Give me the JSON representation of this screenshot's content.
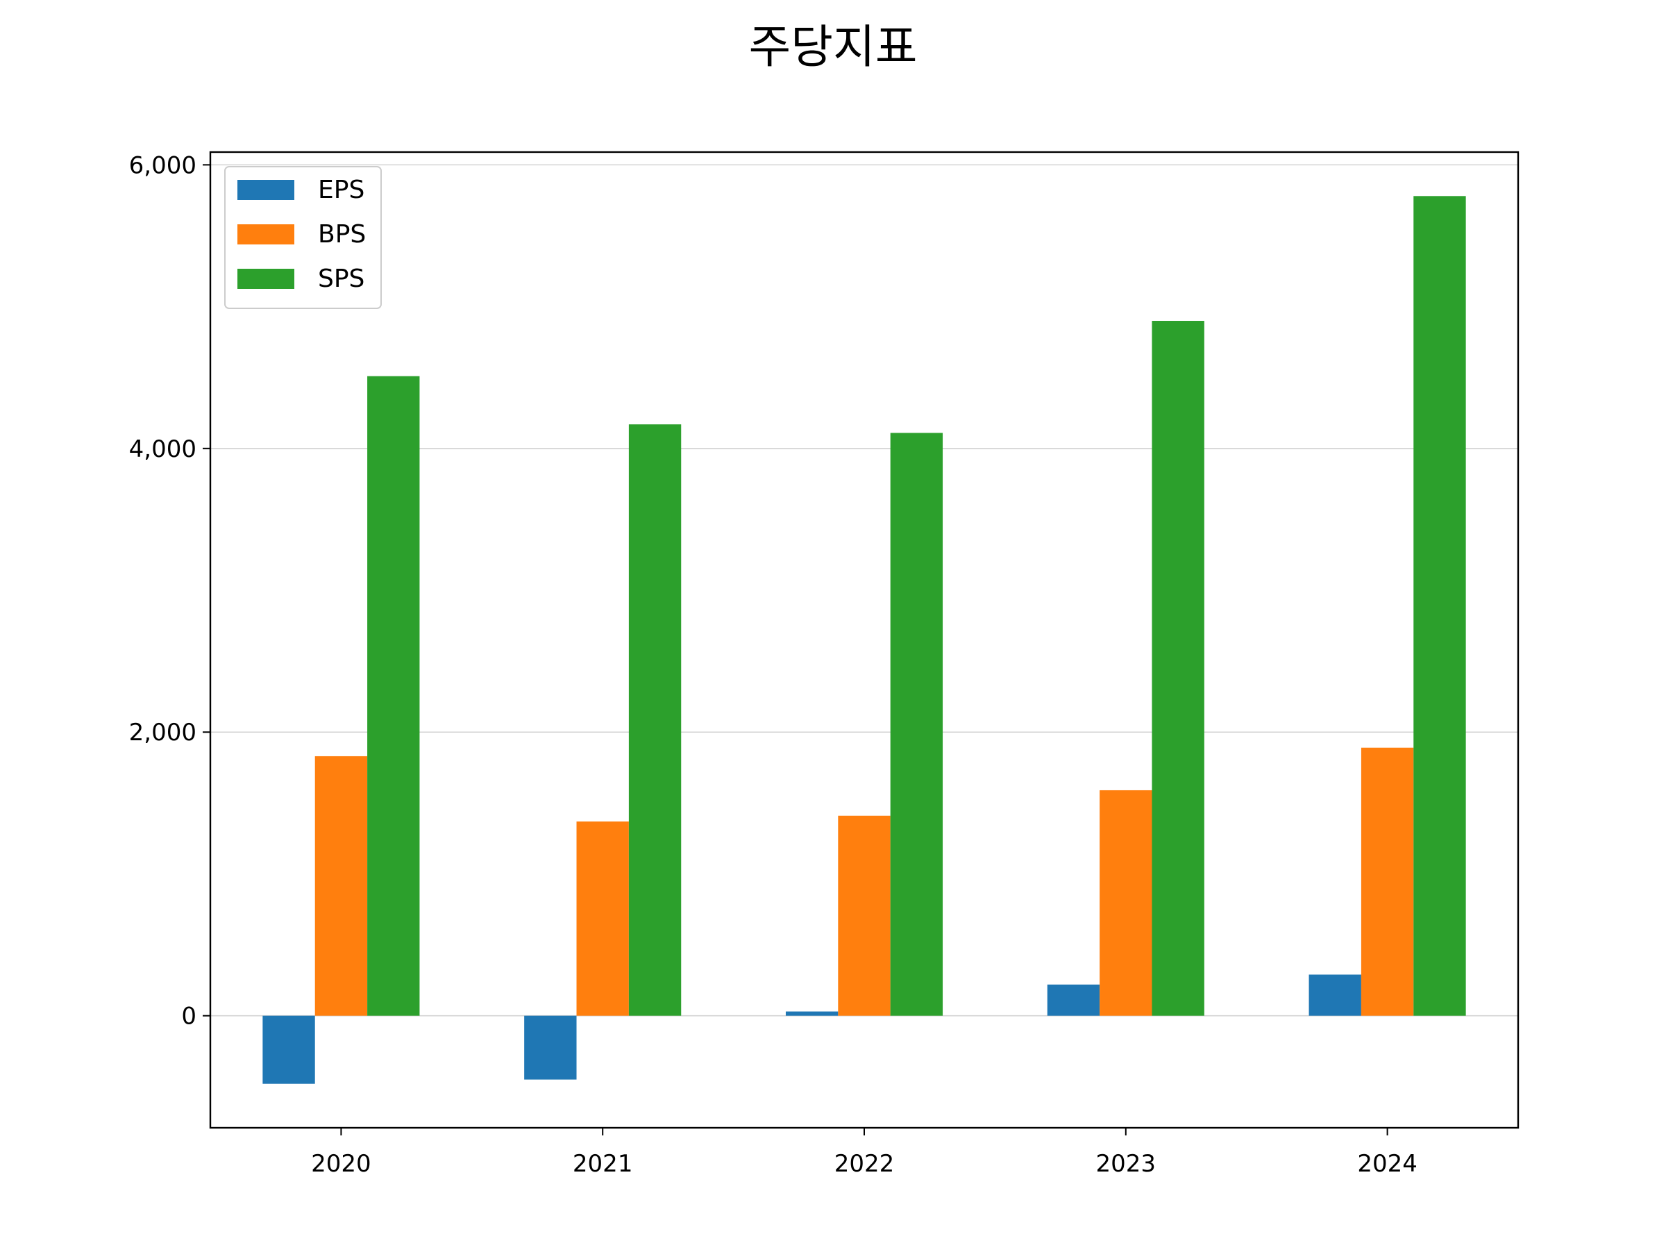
{
  "chart_data": {
    "type": "bar",
    "title": "주당지표",
    "xlabel": "",
    "ylabel": "",
    "categories": [
      "2020",
      "2021",
      "2022",
      "2023",
      "2024"
    ],
    "series": [
      {
        "name": "EPS",
        "color": "#1f77b4",
        "values": [
          -480,
          -450,
          30,
          220,
          290
        ]
      },
      {
        "name": "BPS",
        "color": "#ff7f0e",
        "values": [
          1830,
          1370,
          1410,
          1590,
          1890
        ]
      },
      {
        "name": "SPS",
        "color": "#2ca02c",
        "values": [
          4510,
          4170,
          4110,
          4900,
          5780
        ]
      }
    ],
    "ylim": [
      -790,
      6090
    ],
    "yticks": [
      0,
      2000,
      4000,
      6000
    ],
    "ytick_labels": [
      "0",
      "2,000",
      "4,000",
      "6,000"
    ],
    "grid": "horizontal",
    "legend_position": "top-left"
  }
}
